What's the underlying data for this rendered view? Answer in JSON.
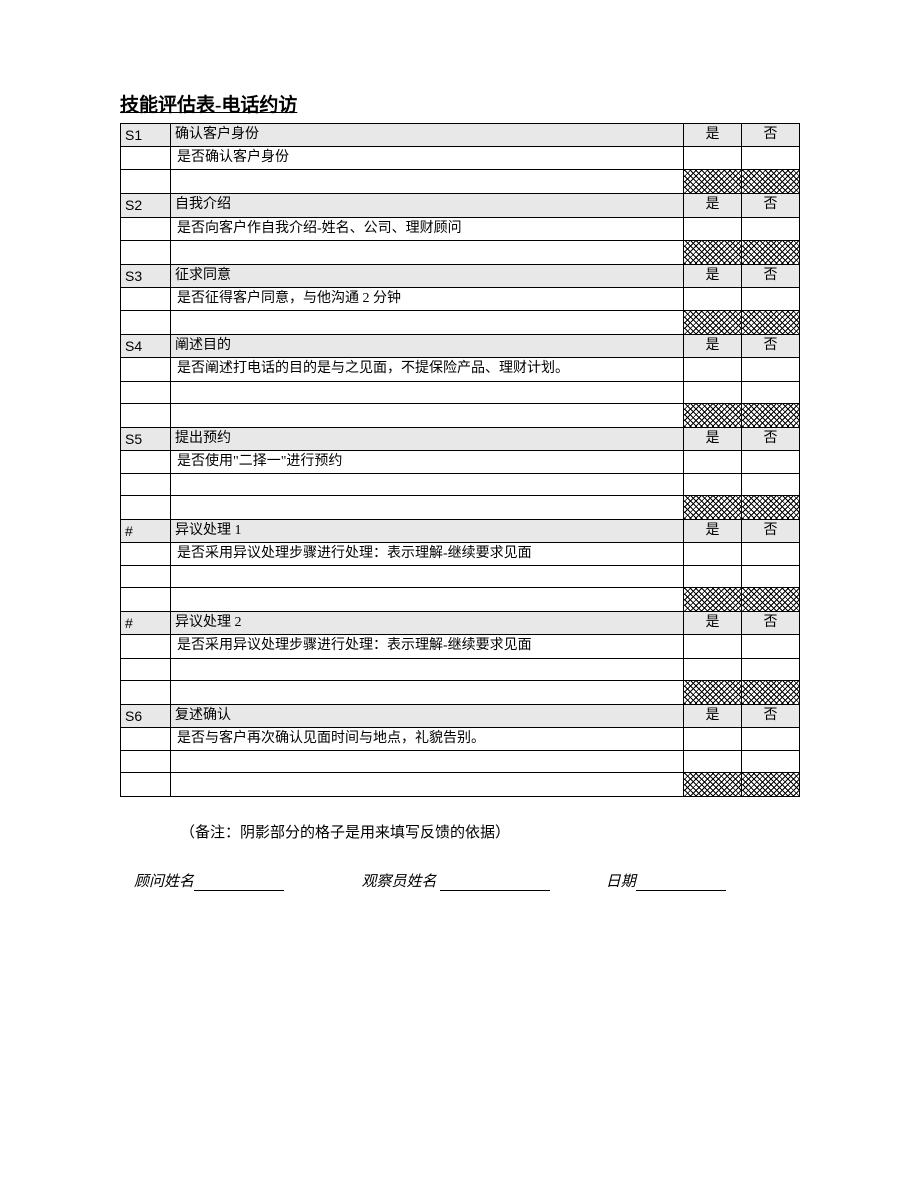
{
  "title": "技能评估表-电话约访",
  "yes_label": "是",
  "no_label": "否",
  "sections": [
    {
      "id": "S1",
      "heading": "确认客户身份",
      "desc": "是否确认客户身份",
      "extra_blank_rows": 0
    },
    {
      "id": "S2",
      "heading": "自我介绍",
      "desc": "是否向客户作自我介绍-姓名、公司、理财顾问",
      "extra_blank_rows": 0
    },
    {
      "id": "S3",
      "heading": "征求同意",
      "desc": "是否征得客户同意，与他沟通 2 分钟",
      "extra_blank_rows": 0
    },
    {
      "id": "S4",
      "heading": "阐述目的",
      "desc": "是否阐述打电话的目的是与之见面，不提保险产品、理财计划。",
      "extra_blank_rows": 1
    },
    {
      "id": "S5",
      "heading": "提出预约",
      "desc": "是否使用\"二择一\"进行预约",
      "extra_blank_rows": 1
    },
    {
      "id": "#",
      "heading": "异议处理 1",
      "desc": "是否采用异议处理步骤进行处理：表示理解-继续要求见面",
      "extra_blank_rows": 1
    },
    {
      "id": "#",
      "heading": "异议处理 2",
      "desc": "是否采用异议处理步骤进行处理：表示理解-继续要求见面",
      "extra_blank_rows": 1
    },
    {
      "id": "S6",
      "heading": "复述确认",
      "desc": "是否与客户再次确认见面时间与地点，礼貌告别。",
      "extra_blank_rows": 1
    }
  ],
  "note": "（备注：阴影部分的格子是用来填写反馈的依据）",
  "sig": {
    "advisor_label": "顾问姓名",
    "observer_label": "观察员姓名",
    "date_label": "日期"
  }
}
